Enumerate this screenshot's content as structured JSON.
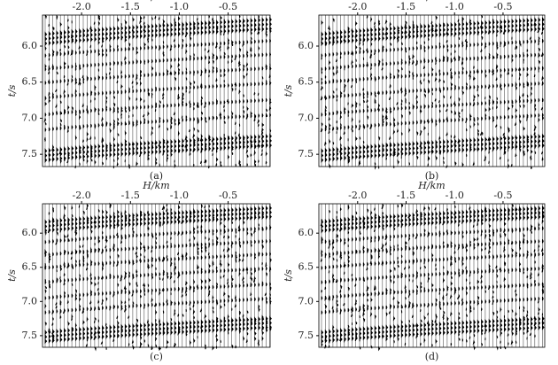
{
  "chart_data": [
    {
      "type": "wiggle",
      "label": "(a)",
      "xlabel": "H/km",
      "ylabel": "t/s",
      "xlim": [
        -2.4,
        -0.07
      ],
      "ylim": [
        5.57,
        7.67
      ],
      "xticks": [
        {
          "value": -2,
          "label": "-2.0"
        },
        -1.5,
        {
          "value": -1,
          "label": "-1.0"
        },
        -0.5
      ],
      "yticks": [
        {
          "value": 6,
          "label": "6.0"
        },
        6.5,
        {
          "value": 7,
          "label": "7.0"
        },
        7.5
      ]
    },
    {
      "type": "wiggle",
      "label": "(b)",
      "xlabel": "H/km",
      "ylabel": "t/s",
      "xlim": [
        -2.4,
        -0.07
      ],
      "ylim": [
        5.57,
        7.67
      ],
      "xticks": [
        {
          "value": -2,
          "label": "-2.0"
        },
        -1.5,
        {
          "value": -1,
          "label": "-1.0"
        },
        -0.5
      ],
      "yticks": [
        {
          "value": 6,
          "label": "6.0"
        },
        6.5,
        {
          "value": 7,
          "label": "7.0"
        },
        7.5
      ]
    },
    {
      "type": "wiggle",
      "label": "(c)",
      "xlabel": "H/km",
      "ylabel": "t/s",
      "xlim": [
        -2.4,
        -0.07
      ],
      "ylim": [
        5.57,
        7.67
      ],
      "xticks": [
        {
          "value": -2,
          "label": "-2.0"
        },
        -1.5,
        {
          "value": -1,
          "label": "-1.0"
        },
        -0.5
      ],
      "yticks": [
        {
          "value": 6,
          "label": "6.0"
        },
        6.5,
        {
          "value": 7,
          "label": "7.0"
        },
        7.5
      ]
    },
    {
      "type": "wiggle",
      "label": "(d)",
      "xlabel": "H/km",
      "ylabel": "t/s",
      "xlim": [
        -2.4,
        -0.07
      ],
      "ylim": [
        5.57,
        7.67
      ],
      "xticks": [
        {
          "value": -2,
          "label": "-2.0"
        },
        -1.5,
        {
          "value": -1,
          "label": "-1.0"
        },
        -0.5
      ],
      "yticks": [
        {
          "value": 6,
          "label": "6.0"
        },
        6.5,
        {
          "value": 7,
          "label": "7.0"
        },
        7.5
      ]
    }
  ]
}
